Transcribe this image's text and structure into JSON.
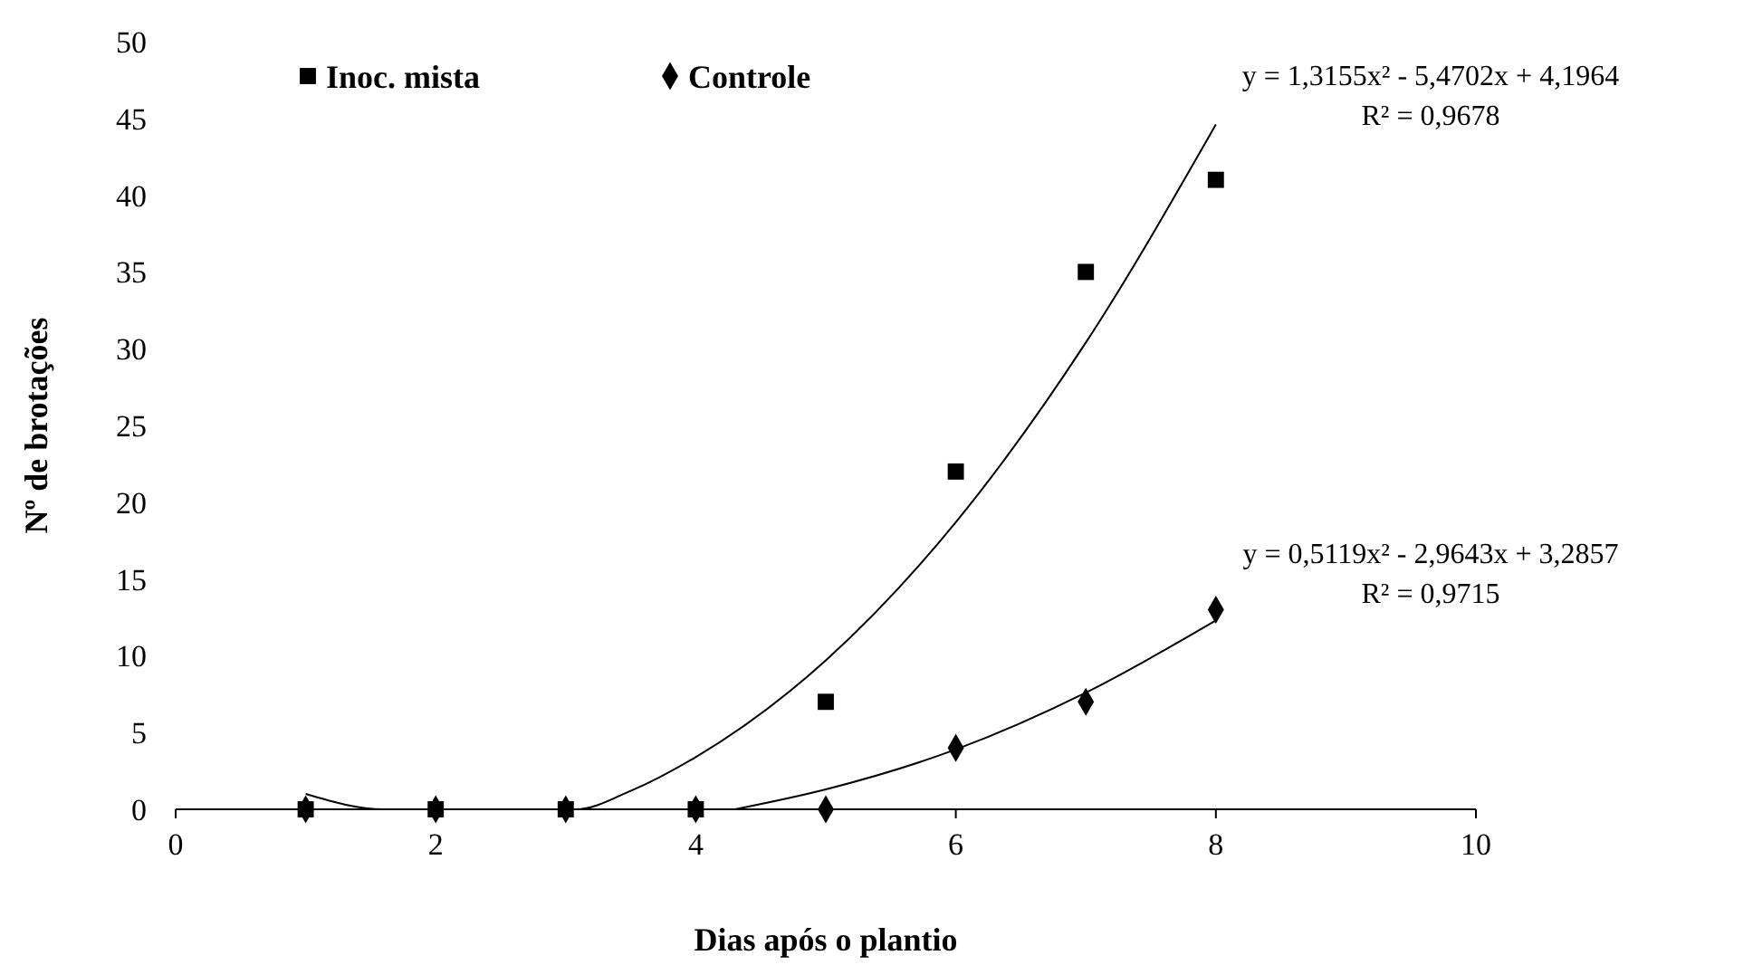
{
  "chart_data": {
    "type": "scatter",
    "xlabel": "Dias após o plantio",
    "ylabel": "Nº de brotações",
    "xlim": [
      0,
      10
    ],
    "xticks": [
      0,
      2,
      4,
      6,
      8,
      10
    ],
    "ylim": [
      0,
      50
    ],
    "yticks": [
      0,
      5,
      10,
      15,
      20,
      25,
      30,
      35,
      40,
      45,
      50
    ],
    "grid": false,
    "legend": "top left",
    "series": [
      {
        "name": "Inoc. mista",
        "color": "#000000",
        "marker": "square",
        "x": [
          1,
          2,
          3,
          4,
          5,
          6,
          7,
          8
        ],
        "values": [
          0,
          0,
          0,
          0,
          7,
          22,
          35,
          41
        ]
      },
      {
        "name": "Controle",
        "color": "#000000",
        "marker": "diamond",
        "x": [
          1,
          2,
          3,
          4,
          5,
          6,
          7,
          8
        ],
        "values": [
          0,
          0,
          0,
          0,
          0,
          4,
          7,
          13
        ]
      },
      {
        "type": "line",
        "color": "#000000",
        "marker": "none",
        "x": [
          1,
          1.6,
          3.08,
          3.5,
          4,
          5,
          6,
          7,
          8
        ],
        "values": [
          1,
          0,
          0,
          1.2,
          3.4,
          9.7,
          18.7,
          30.4,
          44.6
        ]
      },
      {
        "type": "line",
        "color": "#000000",
        "marker": "none",
        "x": [
          4.3,
          5,
          6,
          7,
          8
        ],
        "values": [
          0,
          1.3,
          3.9,
          7.6,
          12.3
        ]
      }
    ],
    "annotations": [
      "y = 1,3155x² - 5,4702x + 4,1964",
      "R² = 0,9678",
      "y = 0,5119x² - 2,9643x + 3,2857",
      "R² = 0,9715"
    ]
  }
}
